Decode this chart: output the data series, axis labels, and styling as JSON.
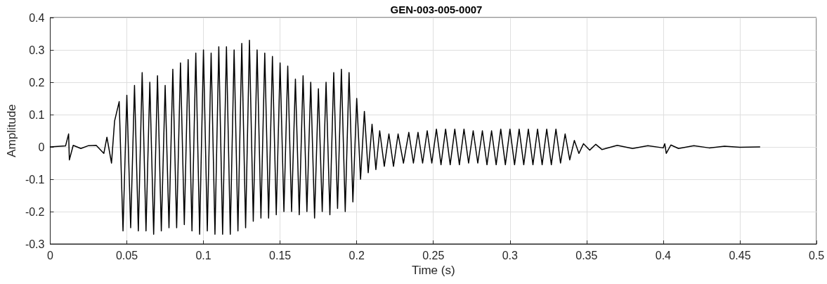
{
  "chart_data": {
    "type": "line",
    "title": "GEN-003-005-0007",
    "xlabel": "Time (s)",
    "ylabel": "Amplitude",
    "xlim": [
      0,
      0.5
    ],
    "xticks": [
      0,
      0.05,
      0.1,
      0.15,
      0.2,
      0.25,
      0.3,
      0.35,
      0.4,
      0.45,
      0.5
    ],
    "ylim": [
      -0.3,
      0.4
    ],
    "yticks": [
      -0.3,
      -0.2,
      -0.1,
      0,
      0.1,
      0.2,
      0.3,
      0.4
    ],
    "grid": true,
    "marker": "none",
    "line_style": "solid",
    "series": [
      {
        "color": "#000000",
        "x": [
          0,
          0.01,
          0.012,
          0.0125,
          0.015,
          0.02,
          0.025,
          0.03,
          0.035,
          0.037,
          0.04,
          0.042,
          0.045,
          0.0475,
          0.05,
          0.0525,
          0.055,
          0.0575,
          0.06,
          0.0625,
          0.065,
          0.0675,
          0.07,
          0.0725,
          0.075,
          0.0775,
          0.08,
          0.0825,
          0.085,
          0.0875,
          0.09,
          0.0925,
          0.095,
          0.0975,
          0.1,
          0.1025,
          0.105,
          0.1075,
          0.11,
          0.1125,
          0.115,
          0.1175,
          0.12,
          0.1225,
          0.125,
          0.1275,
          0.13,
          0.1325,
          0.135,
          0.1375,
          0.14,
          0.1425,
          0.145,
          0.1475,
          0.15,
          0.1525,
          0.155,
          0.1575,
          0.16,
          0.1625,
          0.165,
          0.1675,
          0.17,
          0.1725,
          0.175,
          0.1775,
          0.18,
          0.1825,
          0.185,
          0.1875,
          0.19,
          0.1925,
          0.195,
          0.1975,
          0.2,
          0.2025,
          0.205,
          0.2075,
          0.21,
          0.2125,
          0.215,
          0.218,
          0.221,
          0.224,
          0.227,
          0.2305,
          0.234,
          0.237,
          0.24,
          0.243,
          0.246,
          0.249,
          0.252,
          0.255,
          0.258,
          0.261,
          0.264,
          0.267,
          0.27,
          0.273,
          0.276,
          0.279,
          0.282,
          0.285,
          0.288,
          0.291,
          0.294,
          0.297,
          0.3,
          0.303,
          0.306,
          0.309,
          0.312,
          0.315,
          0.318,
          0.321,
          0.324,
          0.327,
          0.33,
          0.333,
          0.336,
          0.339,
          0.342,
          0.345,
          0.348,
          0.352,
          0.356,
          0.36,
          0.37,
          0.38,
          0.39,
          0.4,
          0.401,
          0.402,
          0.405,
          0.41,
          0.42,
          0.43,
          0.44,
          0.45,
          0.463
        ],
        "values": [
          0,
          0.003,
          0.04,
          -0.04,
          0.005,
          -0.005,
          0.004,
          0.005,
          -0.02,
          0.03,
          -0.05,
          0.08,
          0.14,
          -0.26,
          0.16,
          -0.25,
          0.19,
          -0.26,
          0.23,
          -0.26,
          0.2,
          -0.27,
          0.22,
          -0.26,
          0.19,
          -0.25,
          0.24,
          -0.25,
          0.26,
          -0.24,
          0.27,
          -0.26,
          0.29,
          -0.27,
          0.3,
          -0.26,
          0.29,
          -0.27,
          0.31,
          -0.27,
          0.31,
          -0.27,
          0.3,
          -0.26,
          0.32,
          -0.25,
          0.33,
          -0.23,
          0.3,
          -0.22,
          0.29,
          -0.22,
          0.28,
          -0.21,
          0.26,
          -0.2,
          0.25,
          -0.2,
          0.21,
          -0.21,
          0.22,
          -0.2,
          0.2,
          -0.22,
          0.18,
          -0.2,
          0.2,
          -0.21,
          0.23,
          -0.19,
          0.24,
          -0.2,
          0.23,
          -0.17,
          0.15,
          -0.1,
          0.11,
          -0.08,
          0.07,
          -0.07,
          0.05,
          -0.06,
          0.04,
          -0.06,
          0.04,
          -0.05,
          0.045,
          -0.05,
          0.045,
          -0.05,
          0.05,
          -0.05,
          0.055,
          -0.055,
          0.055,
          -0.055,
          0.055,
          -0.055,
          0.055,
          -0.05,
          0.05,
          -0.05,
          0.05,
          -0.055,
          0.05,
          -0.055,
          0.055,
          -0.055,
          0.055,
          -0.055,
          0.055,
          -0.055,
          0.055,
          -0.055,
          0.055,
          -0.055,
          0.055,
          -0.055,
          0.055,
          -0.05,
          0.04,
          -0.04,
          0.02,
          -0.02,
          0.01,
          -0.01,
          0.008,
          -0.008,
          0.005,
          -0.005,
          0.004,
          -0.003,
          0.01,
          -0.02,
          0.006,
          -0.005,
          0.004,
          -0.003,
          0.002,
          -0.001,
          0
        ]
      }
    ]
  }
}
